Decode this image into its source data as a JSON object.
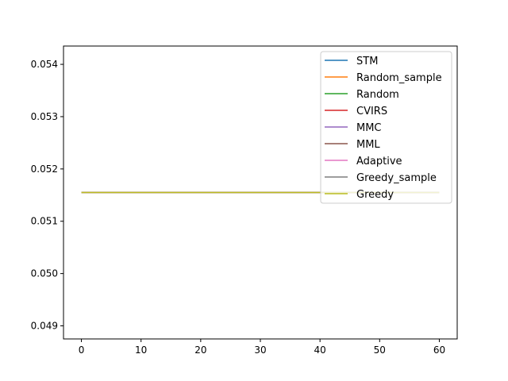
{
  "chart_data": {
    "type": "line",
    "title": "",
    "xlabel": "",
    "ylabel": "",
    "xlim": [
      -3,
      63
    ],
    "ylim": [
      0.04875,
      0.05435
    ],
    "xticks": [
      0,
      10,
      20,
      30,
      40,
      50,
      60
    ],
    "yticks": [
      0.049,
      0.05,
      0.051,
      0.052,
      0.053,
      0.054
    ],
    "ytick_labels": [
      "0.049",
      "0.050",
      "0.051",
      "0.052",
      "0.053",
      "0.054"
    ],
    "grid": false,
    "legend_position": "upper right",
    "x": [
      0,
      60
    ],
    "series": [
      {
        "name": "STM",
        "color": "#1f77b4",
        "values": [
          0.05155,
          0.05155
        ]
      },
      {
        "name": "Random_sample",
        "color": "#ff7f0e",
        "values": [
          0.05155,
          0.05155
        ]
      },
      {
        "name": "Random",
        "color": "#2ca02c",
        "values": [
          0.05155,
          0.05155
        ]
      },
      {
        "name": "CVIRS",
        "color": "#d62728",
        "values": [
          0.05155,
          0.05155
        ]
      },
      {
        "name": "MMC",
        "color": "#9467bd",
        "values": [
          0.05155,
          0.05155
        ]
      },
      {
        "name": "MML",
        "color": "#8c564b",
        "values": [
          0.05155,
          0.05155
        ]
      },
      {
        "name": "Adaptive",
        "color": "#e377c2",
        "values": [
          0.05155,
          0.05155
        ]
      },
      {
        "name": "Greedy_sample",
        "color": "#7f7f7f",
        "values": [
          0.05155,
          0.05155
        ]
      },
      {
        "name": "Greedy",
        "color": "#bcbd22",
        "values": [
          0.05155,
          0.05155
        ]
      }
    ]
  }
}
